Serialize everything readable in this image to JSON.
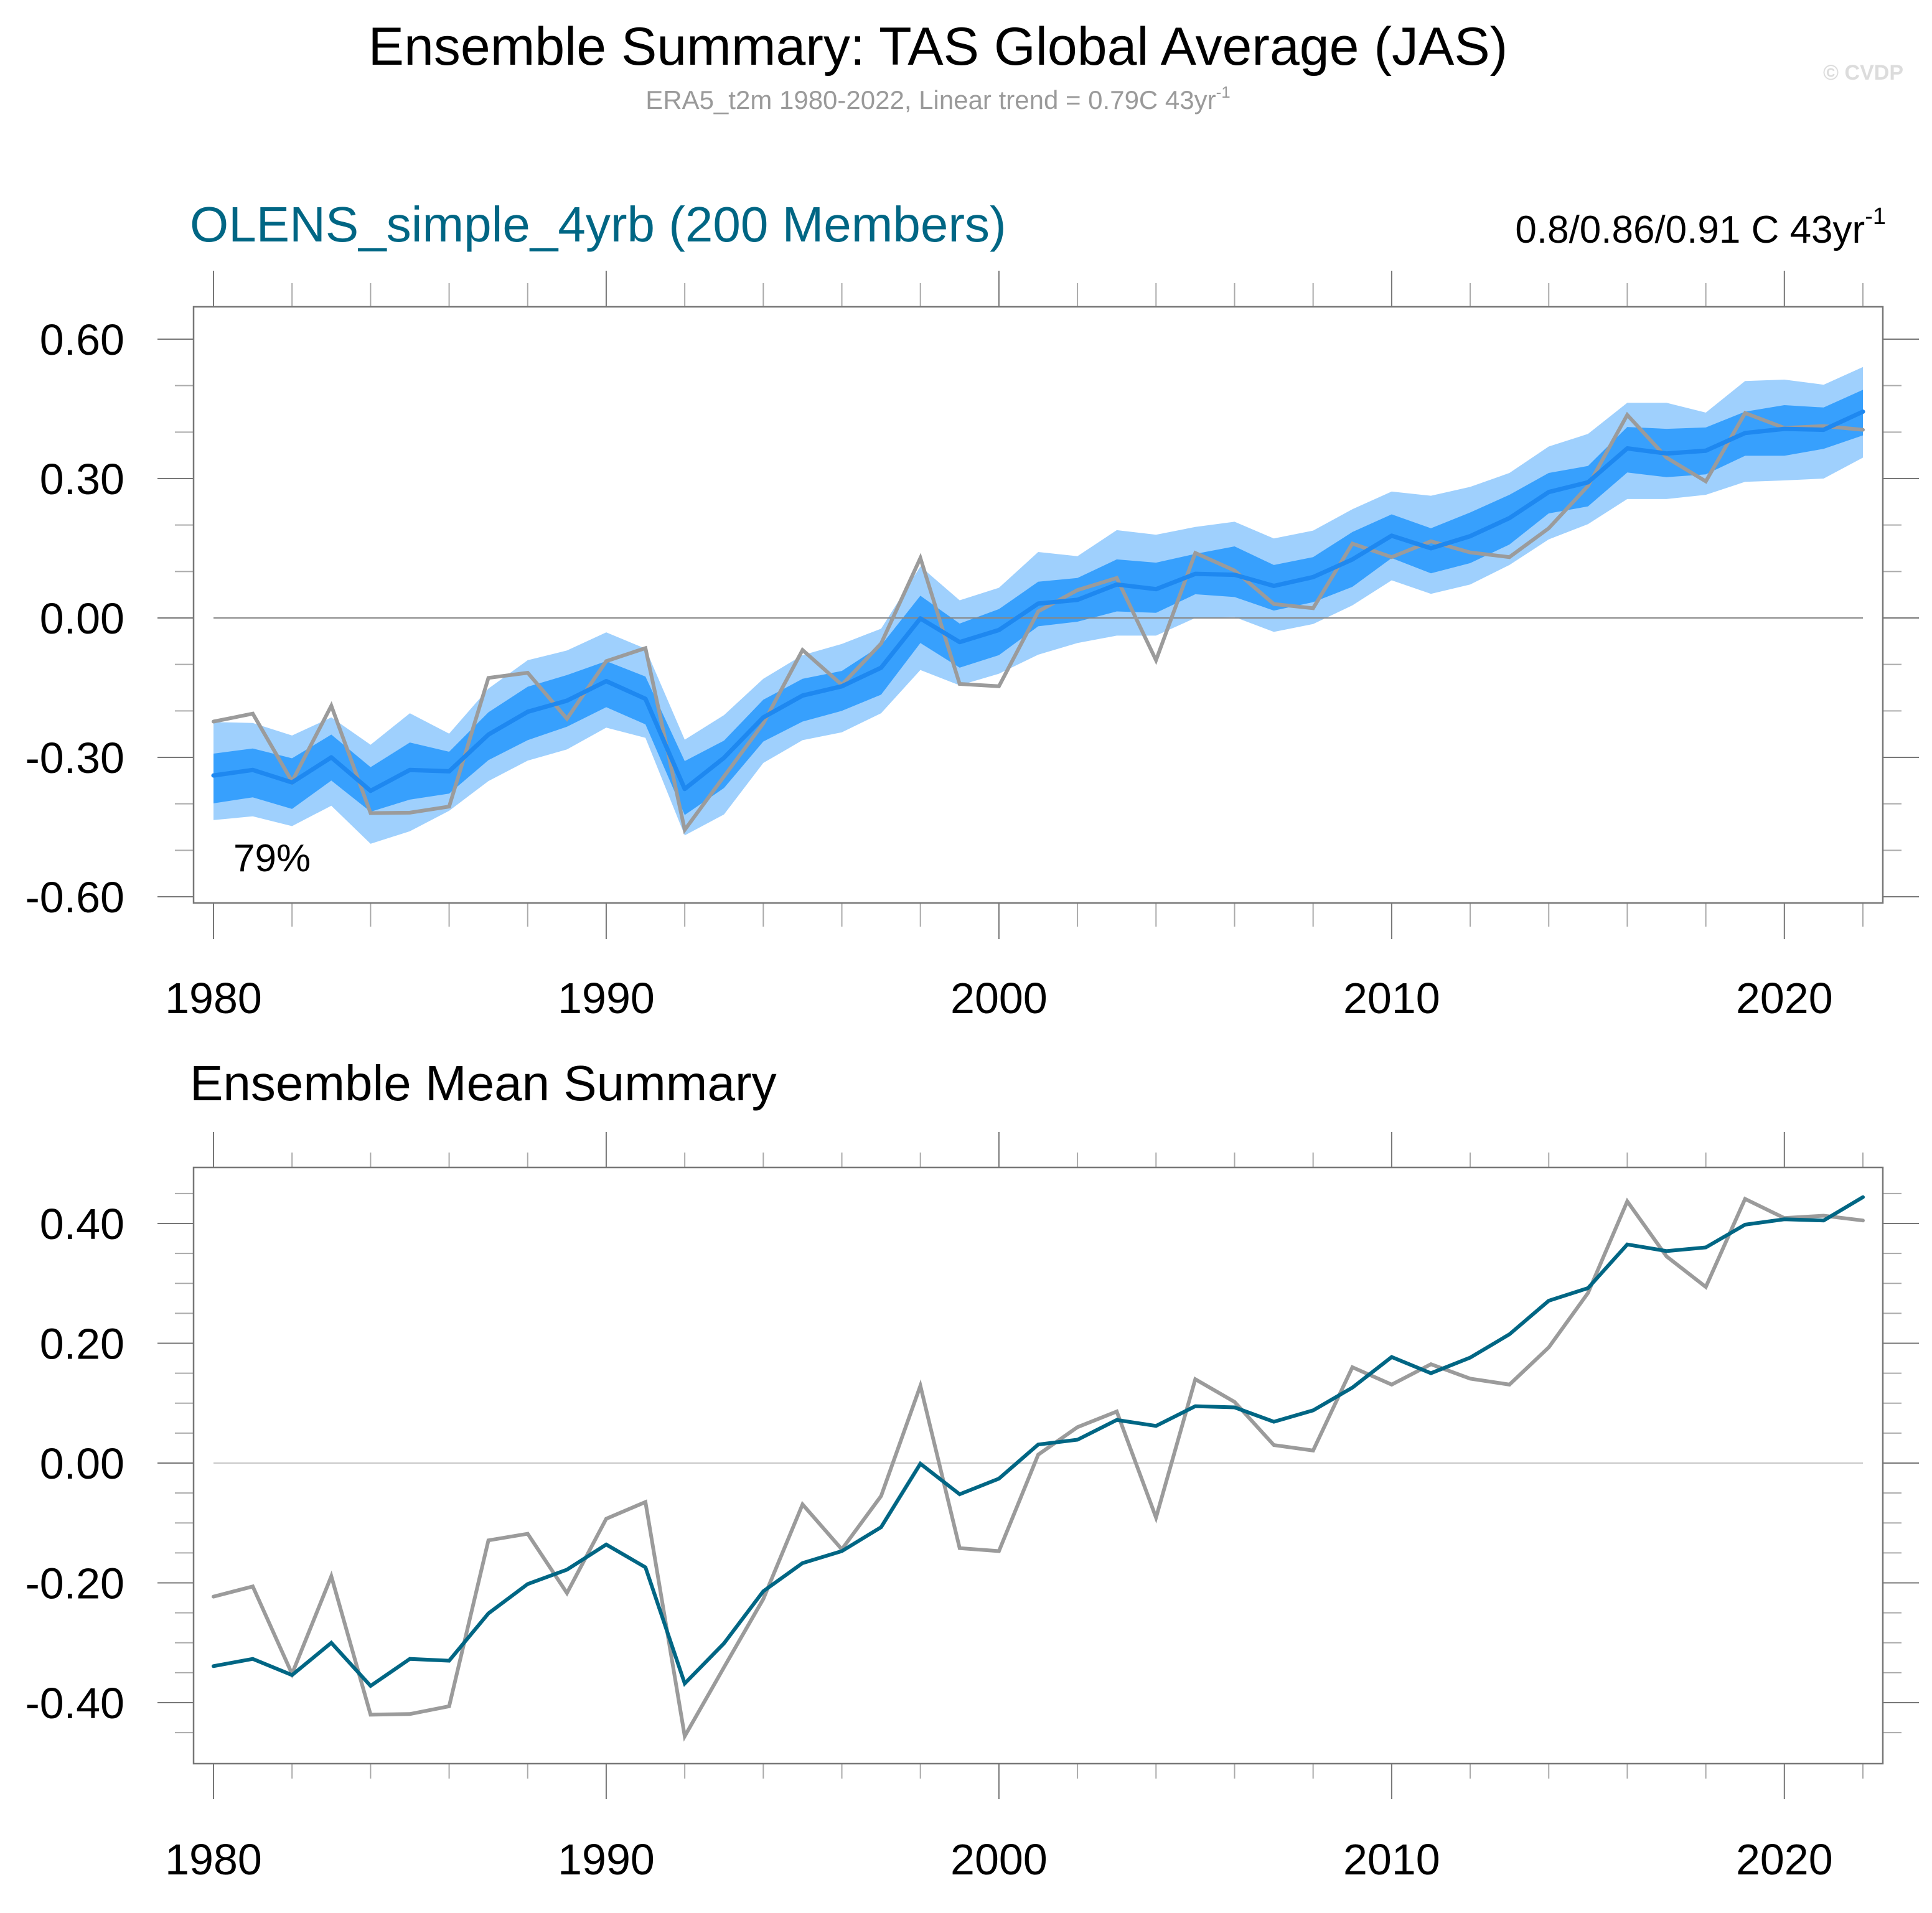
{
  "header": {
    "title": "Ensemble Summary: TAS Global Average (JAS)",
    "subtitle_main": "ERA5_t2m 1980-2022, Linear trend = 0.79C 43yr",
    "subtitle_sup": "-1",
    "watermark": "© CVDP"
  },
  "colors": {
    "outer_band": "#9fd0fd",
    "inner_band": "#37a0fd",
    "member_mean_line": "#1e88f0",
    "observations": "#9b9b9b",
    "ensemble_mean": "#006684",
    "model_title": "#006684"
  },
  "chart_data": [
    {
      "type": "area",
      "title": "OLENS_simple_4yrb (200 Members)",
      "trend_label_main": "0.8/0.86/0.91 C 43yr",
      "trend_label_sup": "-1",
      "annotation": "79%",
      "xlabel": "",
      "ylabel": "",
      "xlim": [
        1980,
        2022
      ],
      "ylim": [
        -0.66,
        0.7
      ],
      "yticks": [
        0.6,
        0.3,
        0.0,
        -0.3,
        -0.6
      ],
      "ytick_labels": [
        "0.60",
        "0.30",
        "0.00",
        "-0.30",
        "-0.60"
      ],
      "xticks": [
        1980,
        1990,
        2000,
        2010,
        2020
      ],
      "xtick_labels": [
        "1980",
        "1990",
        "2000",
        "2010",
        "2020"
      ],
      "grid": false,
      "legend": "none",
      "x": [
        1980,
        1981,
        1982,
        1983,
        1984,
        1985,
        1986,
        1987,
        1988,
        1989,
        1990,
        1991,
        1992,
        1993,
        1994,
        1995,
        1996,
        1997,
        1998,
        1999,
        2000,
        2001,
        2002,
        2003,
        2004,
        2005,
        2006,
        2007,
        2008,
        2009,
        2010,
        2011,
        2012,
        2013,
        2014,
        2015,
        2016,
        2017,
        2018,
        2019,
        2020,
        2021,
        2022
      ],
      "series": [
        {
          "name": "Ensemble 10-90% range (upper)",
          "role": "outer_upper",
          "values": [
            -0.224,
            -0.226,
            -0.253,
            -0.214,
            -0.273,
            -0.205,
            -0.249,
            -0.152,
            -0.091,
            -0.07,
            -0.031,
            -0.066,
            -0.262,
            -0.209,
            -0.131,
            -0.08,
            -0.056,
            -0.023,
            0.111,
            0.038,
            0.065,
            0.142,
            0.133,
            0.189,
            0.179,
            0.196,
            0.207,
            0.171,
            0.188,
            0.234,
            0.272,
            0.263,
            0.282,
            0.312,
            0.369,
            0.396,
            0.463,
            0.463,
            0.442,
            0.51,
            0.513,
            0.502,
            0.54
          ]
        },
        {
          "name": "Ensemble 10-90% range (lower)",
          "role": "outer_lower",
          "values": [
            -0.435,
            -0.427,
            -0.448,
            -0.404,
            -0.486,
            -0.459,
            -0.415,
            -0.351,
            -0.307,
            -0.283,
            -0.236,
            -0.258,
            -0.468,
            -0.423,
            -0.312,
            -0.263,
            -0.246,
            -0.205,
            -0.112,
            -0.145,
            -0.12,
            -0.079,
            -0.054,
            -0.038,
            -0.038,
            0.0,
            0.002,
            -0.03,
            -0.013,
            0.027,
            0.081,
            0.052,
            0.072,
            0.114,
            0.169,
            0.202,
            0.256,
            0.256,
            0.265,
            0.293,
            0.296,
            0.3,
            0.345
          ]
        },
        {
          "name": "Ensemble 25-75% range (upper)",
          "role": "inner_upper",
          "values": [
            -0.292,
            -0.281,
            -0.302,
            -0.251,
            -0.321,
            -0.268,
            -0.288,
            -0.203,
            -0.148,
            -0.123,
            -0.093,
            -0.126,
            -0.308,
            -0.264,
            -0.176,
            -0.131,
            -0.114,
            -0.059,
            0.048,
            -0.012,
            0.019,
            0.078,
            0.086,
            0.126,
            0.119,
            0.138,
            0.154,
            0.114,
            0.131,
            0.185,
            0.223,
            0.193,
            0.227,
            0.265,
            0.312,
            0.327,
            0.411,
            0.407,
            0.41,
            0.444,
            0.458,
            0.453,
            0.491
          ]
        },
        {
          "name": "Ensemble 25-75% range (lower)",
          "role": "inner_lower",
          "values": [
            -0.399,
            -0.386,
            -0.411,
            -0.35,
            -0.417,
            -0.391,
            -0.378,
            -0.306,
            -0.263,
            -0.234,
            -0.192,
            -0.229,
            -0.424,
            -0.366,
            -0.266,
            -0.223,
            -0.2,
            -0.165,
            -0.054,
            -0.107,
            -0.08,
            -0.018,
            -0.008,
            0.014,
            0.011,
            0.051,
            0.045,
            0.016,
            0.034,
            0.067,
            0.129,
            0.096,
            0.118,
            0.158,
            0.225,
            0.24,
            0.313,
            0.303,
            0.309,
            0.349,
            0.349,
            0.364,
            0.393
          ]
        },
        {
          "name": "Ensemble Mean",
          "role": "mean",
          "values": [
            -0.339,
            -0.327,
            -0.354,
            -0.3,
            -0.372,
            -0.327,
            -0.33,
            -0.251,
            -0.202,
            -0.178,
            -0.136,
            -0.174,
            -0.368,
            -0.301,
            -0.214,
            -0.167,
            -0.147,
            -0.107,
            -0.001,
            -0.052,
            -0.026,
            0.031,
            0.039,
            0.072,
            0.062,
            0.095,
            0.093,
            0.069,
            0.088,
            0.126,
            0.177,
            0.15,
            0.176,
            0.215,
            0.271,
            0.292,
            0.365,
            0.354,
            0.36,
            0.398,
            0.407,
            0.405,
            0.444
          ]
        },
        {
          "name": "ERA5_t2m",
          "role": "obs",
          "values": [
            -0.223,
            -0.206,
            -0.352,
            -0.189,
            -0.42,
            -0.419,
            -0.406,
            -0.129,
            -0.118,
            -0.217,
            -0.093,
            -0.065,
            -0.456,
            -0.341,
            -0.227,
            -0.069,
            -0.144,
            -0.055,
            0.129,
            -0.142,
            -0.147,
            0.014,
            0.06,
            0.086,
            -0.091,
            0.14,
            0.102,
            0.03,
            0.021,
            0.16,
            0.131,
            0.165,
            0.141,
            0.131,
            0.193,
            0.284,
            0.437,
            0.345,
            0.294,
            0.441,
            0.409,
            0.413,
            0.405
          ]
        }
      ]
    },
    {
      "type": "line",
      "title": "Ensemble Mean Summary",
      "xlabel": "",
      "ylabel": "",
      "xlim": [
        1980,
        2022
      ],
      "ylim": [
        -0.49,
        0.5
      ],
      "yticks": [
        0.4,
        0.2,
        0.0,
        -0.2,
        -0.4
      ],
      "ytick_labels": [
        "0.40",
        "0.20",
        "0.00",
        "-0.20",
        "-0.40"
      ],
      "xticks": [
        1980,
        1990,
        2000,
        2010,
        2020
      ],
      "xtick_labels": [
        "1980",
        "1990",
        "2000",
        "2010",
        "2020"
      ],
      "grid": false,
      "legend": "none",
      "x": [
        1980,
        1981,
        1982,
        1983,
        1984,
        1985,
        1986,
        1987,
        1988,
        1989,
        1990,
        1991,
        1992,
        1993,
        1994,
        1995,
        1996,
        1997,
        1998,
        1999,
        2000,
        2001,
        2002,
        2003,
        2004,
        2005,
        2006,
        2007,
        2008,
        2009,
        2010,
        2011,
        2012,
        2013,
        2014,
        2015,
        2016,
        2017,
        2018,
        2019,
        2020,
        2021,
        2022
      ],
      "series": [
        {
          "name": "ERA5_t2m",
          "role": "obs",
          "values": [
            -0.223,
            -0.206,
            -0.352,
            -0.189,
            -0.42,
            -0.419,
            -0.406,
            -0.129,
            -0.118,
            -0.217,
            -0.093,
            -0.065,
            -0.456,
            -0.341,
            -0.227,
            -0.069,
            -0.144,
            -0.055,
            0.129,
            -0.142,
            -0.147,
            0.014,
            0.06,
            0.086,
            -0.091,
            0.14,
            0.102,
            0.03,
            0.021,
            0.16,
            0.131,
            0.165,
            0.141,
            0.131,
            0.193,
            0.284,
            0.437,
            0.345,
            0.294,
            0.441,
            0.409,
            0.413,
            0.405
          ]
        },
        {
          "name": "OLENS_simple_4yrb Ensemble Mean",
          "role": "mean",
          "values": [
            -0.339,
            -0.327,
            -0.354,
            -0.3,
            -0.372,
            -0.327,
            -0.33,
            -0.251,
            -0.202,
            -0.178,
            -0.136,
            -0.174,
            -0.368,
            -0.301,
            -0.214,
            -0.167,
            -0.147,
            -0.107,
            -0.001,
            -0.052,
            -0.026,
            0.031,
            0.039,
            0.072,
            0.062,
            0.095,
            0.093,
            0.069,
            0.088,
            0.126,
            0.177,
            0.15,
            0.176,
            0.215,
            0.271,
            0.292,
            0.365,
            0.354,
            0.36,
            0.398,
            0.407,
            0.405,
            0.444
          ]
        }
      ]
    }
  ]
}
